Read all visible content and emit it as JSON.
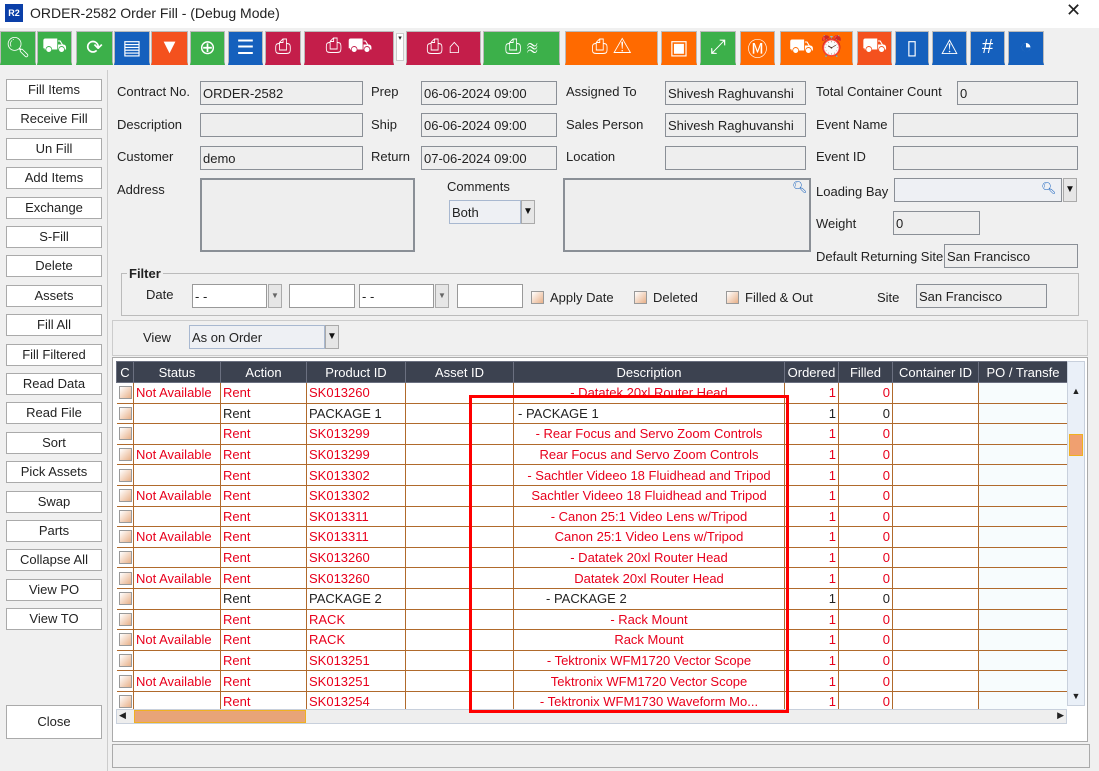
{
  "window": {
    "logo": "R2",
    "title": "ORDER-2582 Order Fill - (Debug Mode)",
    "close": "✕"
  },
  "toolbar": [
    {
      "icon": "search-icon",
      "glyph": "🔍︎",
      "color": "green"
    },
    {
      "icon": "hand-truck-icon",
      "glyph": "⛟",
      "color": "green"
    },
    {
      "icon": "refresh-icon",
      "glyph": "⟳",
      "color": "green"
    },
    {
      "icon": "comment-icon",
      "glyph": "▤",
      "color": "blue"
    },
    {
      "icon": "filter-icon",
      "glyph": "▼",
      "color": "red"
    },
    {
      "icon": "zoom-in-icon",
      "glyph": "⊕",
      "color": "green"
    },
    {
      "icon": "list-icon",
      "glyph": "☰",
      "color": "blue"
    },
    {
      "icon": "print-icon",
      "glyph": "⎙",
      "color": "crimson"
    },
    {
      "icon": "print-truck-icon",
      "glyph": "⎙ ⛟",
      "color": "crimson"
    },
    {
      "icon": "print-tag-icon",
      "glyph": "⎙ ⌂",
      "color": "crimson"
    },
    {
      "icon": "print-layers-icon",
      "glyph": "⎙ ≋",
      "color": "green"
    },
    {
      "icon": "print-warning-icon",
      "glyph": "⎙ ⚠",
      "color": "orange"
    },
    {
      "icon": "box-icon",
      "glyph": "▣",
      "color": "orange"
    },
    {
      "icon": "expand-icon",
      "glyph": "⤢",
      "color": "green"
    },
    {
      "icon": "box-m-icon",
      "glyph": "Ⓜ",
      "color": "orange"
    },
    {
      "icon": "truck-clock-icon",
      "glyph": "⛟ ⏰",
      "color": "orange"
    },
    {
      "icon": "truck-icon",
      "glyph": "⛟",
      "color": "red"
    },
    {
      "icon": "book-icon",
      "glyph": "▯",
      "color": "blue"
    },
    {
      "icon": "warning-eye-icon",
      "glyph": "⚠",
      "color": "blue"
    },
    {
      "icon": "hash-icon",
      "glyph": "#",
      "color": "blue"
    },
    {
      "icon": "gauge-icon",
      "glyph": "◔",
      "color": "blue"
    }
  ],
  "sidebar": [
    "Fill Items",
    "Receive Fill",
    "Un Fill",
    "Add Items",
    "Exchange",
    "S-Fill",
    "Delete",
    "Assets",
    "Fill  All",
    "Fill Filtered",
    "Read Data",
    "Read File",
    "Sort",
    "Pick Assets",
    "Swap",
    "Parts",
    "Collapse All",
    "View PO",
    "View TO"
  ],
  "close_label": "Close",
  "form": {
    "contract_label": "Contract No.",
    "contract": "ORDER-2582",
    "description_label": "Description",
    "description": "",
    "customer_label": "Customer",
    "customer": "demo",
    "address_label": "Address",
    "prep_label": "Prep",
    "prep": "06-06-2024 09:00",
    "ship_label": "Ship",
    "ship": "06-06-2024 09:00",
    "return_label": "Return",
    "return": "07-06-2024 09:00",
    "comments_label": "Comments",
    "comments_mode": "Both",
    "assigned_label": "Assigned To",
    "assigned": "Shivesh Raghuvanshi",
    "sales_label": "Sales Person",
    "sales": "Shivesh Raghuvanshi",
    "location_label": "Location",
    "container_count_label": "Total Container Count",
    "container_count": "0",
    "event_name_label": "Event Name",
    "event_id_label": "Event ID",
    "loading_bay_label": "Loading Bay",
    "weight_label": "Weight",
    "weight": "0",
    "default_site_label": "Default Returning Site",
    "default_site": "San Francisco"
  },
  "filter": {
    "title": "Filter",
    "date_label": "Date",
    "date_from": " -  -",
    "date_to": " -  -",
    "apply_date": "Apply Date",
    "deleted": "Deleted",
    "filled_out": "Filled & Out",
    "site_label": "Site",
    "site": "San Francisco"
  },
  "view": {
    "label": "View",
    "value": "As on Order"
  },
  "table": {
    "columns": [
      "C",
      "Status",
      "Action",
      "Product ID",
      "Asset ID",
      "Description",
      "Ordered",
      "Filled",
      "Container ID",
      "PO / Transfe"
    ],
    "rows": [
      {
        "status": "Not Available",
        "action": "Rent",
        "product": "SK013260",
        "desc": "- Datatek 20xl Router Head",
        "ordered": "1",
        "filled": "0",
        "pkg": false
      },
      {
        "status": "",
        "action": "Rent",
        "product": "PACKAGE 1",
        "desc": "- PACKAGE 1",
        "ordered": "1",
        "filled": "0",
        "pkg": true
      },
      {
        "status": "",
        "action": "Rent",
        "product": "SK013299",
        "desc": "- Rear Focus and Servo Zoom Controls",
        "ordered": "1",
        "filled": "0",
        "pkg": false
      },
      {
        "status": "Not Available",
        "action": "Rent",
        "product": "SK013299",
        "desc": "Rear Focus and Servo Zoom Controls",
        "ordered": "1",
        "filled": "0",
        "pkg": false
      },
      {
        "status": "",
        "action": "Rent",
        "product": "SK013302",
        "desc": "- Sachtler Videeo 18 Fluidhead and Tripod",
        "ordered": "1",
        "filled": "0",
        "pkg": false
      },
      {
        "status": "Not Available",
        "action": "Rent",
        "product": "SK013302",
        "desc": "Sachtler Videeo 18 Fluidhead and Tripod",
        "ordered": "1",
        "filled": "0",
        "pkg": false
      },
      {
        "status": "",
        "action": "Rent",
        "product": "SK013311",
        "desc": "- Canon 25:1 Video Lens w/Tripod",
        "ordered": "1",
        "filled": "0",
        "pkg": false
      },
      {
        "status": "Not Available",
        "action": "Rent",
        "product": "SK013311",
        "desc": "Canon 25:1 Video Lens w/Tripod",
        "ordered": "1",
        "filled": "0",
        "pkg": false
      },
      {
        "status": "",
        "action": "Rent",
        "product": "SK013260",
        "desc": "- Datatek 20xl Router Head",
        "ordered": "1",
        "filled": "0",
        "pkg": false
      },
      {
        "status": "Not Available",
        "action": "Rent",
        "product": "SK013260",
        "desc": "Datatek 20xl Router Head",
        "ordered": "1",
        "filled": "0",
        "pkg": false
      },
      {
        "status": "",
        "action": "Rent",
        "product": "PACKAGE 2",
        "desc": "- PACKAGE 2",
        "ordered": "1",
        "filled": "0",
        "pkg": true
      },
      {
        "status": "",
        "action": "Rent",
        "product": "RACK",
        "desc": "- Rack Mount",
        "ordered": "1",
        "filled": "0",
        "pkg": false
      },
      {
        "status": "Not Available",
        "action": "Rent",
        "product": "RACK",
        "desc": "Rack Mount",
        "ordered": "1",
        "filled": "0",
        "pkg": false
      },
      {
        "status": "",
        "action": "Rent",
        "product": "SK013251",
        "desc": "- Tektronix WFM1720 Vector Scope",
        "ordered": "1",
        "filled": "0",
        "pkg": false
      },
      {
        "status": "Not Available",
        "action": "Rent",
        "product": "SK013251",
        "desc": "Tektronix WFM1720 Vector Scope",
        "ordered": "1",
        "filled": "0",
        "pkg": false
      },
      {
        "status": "",
        "action": "Rent",
        "product": "SK013254",
        "desc": "- Tektronix WFM1730 Waveform Mo...",
        "ordered": "1",
        "filled": "0",
        "pkg": false
      }
    ]
  },
  "colors": {
    "warning_text": "#e8001c",
    "row_border": "#b06a2c",
    "header_bg": "#3c4250",
    "highlight_box": "#ff0000"
  }
}
